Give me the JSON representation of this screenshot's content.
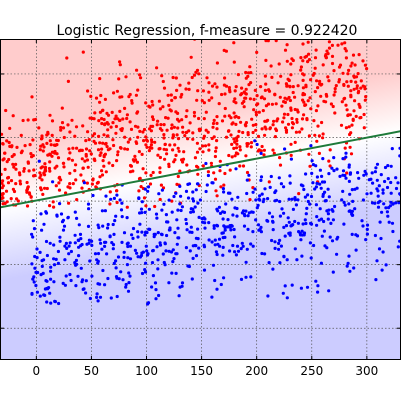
{
  "chart_data": {
    "type": "scatter",
    "title": "Logistic Regression, f-measure = 0.922420",
    "xlabel": "",
    "ylabel": "",
    "xlim": [
      -33,
      331
    ],
    "ylim": [
      -0.5,
      4.55
    ],
    "x_ticks": [
      0,
      50,
      100,
      150,
      200,
      250,
      300
    ],
    "x_tick_labels": [
      "0",
      "50",
      "100",
      "150",
      "200",
      "250",
      "300"
    ],
    "y_ticks": [
      0,
      1,
      2,
      3,
      4
    ],
    "grid": true,
    "legend": "none",
    "background": {
      "upper_class_color": "#ffcccc",
      "lower_class_color": "#ccccff",
      "transition_color": "#ffffff"
    },
    "decision_boundary": {
      "color": "#1e7a3a",
      "x": [
        -33,
        331
      ],
      "y": [
        1.9,
        3.1
      ]
    },
    "series": [
      {
        "class": "upper",
        "color": "#ff0000",
        "count": 950,
        "x_range": [
          -33,
          300
        ],
        "y_range": [
          1.9,
          4.55
        ]
      },
      {
        "class": "lower",
        "color": "#0000ff",
        "count": 750,
        "x_range": [
          -5,
          331
        ],
        "y_range": [
          0.35,
          3.0
        ]
      }
    ]
  }
}
